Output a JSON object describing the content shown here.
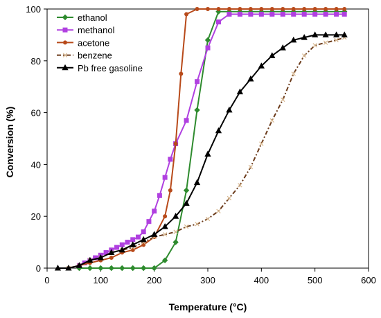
{
  "chart_data": {
    "type": "line",
    "title": "",
    "xlabel": "Temperature (°C)",
    "ylabel": "Conversion (%)",
    "xlim": [
      0,
      600
    ],
    "ylim": [
      0,
      100
    ],
    "x_ticks": [
      0,
      100,
      200,
      300,
      400,
      500,
      600
    ],
    "y_ticks": [
      0,
      20,
      40,
      60,
      80,
      100
    ],
    "grid": false,
    "legend_position": "top-left",
    "series": [
      {
        "name": "ethanol",
        "color": "#2e8b2e",
        "marker": "diamond",
        "dash": "",
        "points": [
          [
            60,
            0
          ],
          [
            80,
            0
          ],
          [
            100,
            0
          ],
          [
            120,
            0
          ],
          [
            140,
            0
          ],
          [
            160,
            0
          ],
          [
            180,
            0
          ],
          [
            200,
            0
          ],
          [
            220,
            3
          ],
          [
            240,
            10
          ],
          [
            260,
            30
          ],
          [
            280,
            61
          ],
          [
            300,
            88
          ],
          [
            320,
            99
          ],
          [
            340,
            99
          ],
          [
            360,
            99
          ],
          [
            380,
            99
          ],
          [
            400,
            99
          ],
          [
            420,
            99
          ],
          [
            440,
            99
          ],
          [
            460,
            99
          ],
          [
            480,
            99
          ],
          [
            500,
            99
          ],
          [
            520,
            99
          ],
          [
            540,
            99
          ],
          [
            555,
            99
          ]
        ]
      },
      {
        "name": "methanol",
        "color": "#b040e0",
        "marker": "square",
        "dash": "",
        "points": [
          [
            60,
            1
          ],
          [
            70,
            2
          ],
          [
            80,
            3
          ],
          [
            90,
            4
          ],
          [
            100,
            5
          ],
          [
            110,
            6
          ],
          [
            120,
            7
          ],
          [
            130,
            8
          ],
          [
            140,
            9
          ],
          [
            150,
            10
          ],
          [
            160,
            11
          ],
          [
            170,
            12
          ],
          [
            180,
            14
          ],
          [
            190,
            18
          ],
          [
            200,
            22
          ],
          [
            210,
            28
          ],
          [
            220,
            35
          ],
          [
            230,
            42
          ],
          [
            240,
            48
          ],
          [
            260,
            57
          ],
          [
            280,
            72
          ],
          [
            300,
            85
          ],
          [
            320,
            95
          ],
          [
            340,
            98
          ],
          [
            360,
            98
          ],
          [
            380,
            98
          ],
          [
            400,
            98
          ],
          [
            420,
            98
          ],
          [
            440,
            98
          ],
          [
            460,
            98
          ],
          [
            480,
            98
          ],
          [
            500,
            98
          ],
          [
            520,
            98
          ],
          [
            540,
            98
          ],
          [
            555,
            98
          ]
        ]
      },
      {
        "name": "acetone",
        "color": "#b84a1a",
        "marker": "circle",
        "dash": "",
        "points": [
          [
            40,
            0
          ],
          [
            60,
            1
          ],
          [
            80,
            2
          ],
          [
            100,
            3
          ],
          [
            120,
            4
          ],
          [
            140,
            6
          ],
          [
            160,
            7
          ],
          [
            180,
            9
          ],
          [
            200,
            12
          ],
          [
            220,
            20
          ],
          [
            230,
            30
          ],
          [
            240,
            48
          ],
          [
            250,
            75
          ],
          [
            260,
            98
          ],
          [
            280,
            100
          ],
          [
            300,
            100
          ],
          [
            320,
            100
          ],
          [
            340,
            100
          ],
          [
            360,
            100
          ],
          [
            380,
            100
          ],
          [
            400,
            100
          ],
          [
            420,
            100
          ],
          [
            440,
            100
          ],
          [
            460,
            100
          ],
          [
            480,
            100
          ],
          [
            500,
            100
          ],
          [
            520,
            100
          ],
          [
            540,
            100
          ],
          [
            555,
            100
          ]
        ]
      },
      {
        "name": "benzene",
        "color": "#6b3a1a",
        "marker": "x",
        "dash": "6,3,2,3",
        "points": [
          [
            40,
            0
          ],
          [
            60,
            1
          ],
          [
            80,
            3
          ],
          [
            100,
            4
          ],
          [
            120,
            6
          ],
          [
            140,
            7
          ],
          [
            160,
            8
          ],
          [
            180,
            10
          ],
          [
            200,
            12
          ],
          [
            220,
            13
          ],
          [
            240,
            14
          ],
          [
            260,
            16
          ],
          [
            280,
            17
          ],
          [
            300,
            19
          ],
          [
            320,
            22
          ],
          [
            340,
            27
          ],
          [
            360,
            32
          ],
          [
            380,
            39
          ],
          [
            400,
            48
          ],
          [
            420,
            57
          ],
          [
            440,
            65
          ],
          [
            460,
            75
          ],
          [
            480,
            82
          ],
          [
            500,
            86
          ],
          [
            520,
            87
          ],
          [
            540,
            88
          ],
          [
            555,
            89
          ]
        ]
      },
      {
        "name": "Pb free gasoline",
        "color": "#000000",
        "marker": "triangle",
        "dash": "",
        "points": [
          [
            20,
            0
          ],
          [
            40,
            0
          ],
          [
            60,
            1
          ],
          [
            80,
            3
          ],
          [
            100,
            4
          ],
          [
            120,
            6
          ],
          [
            140,
            7
          ],
          [
            160,
            9
          ],
          [
            180,
            11
          ],
          [
            200,
            13
          ],
          [
            220,
            16
          ],
          [
            240,
            20
          ],
          [
            260,
            25
          ],
          [
            280,
            33
          ],
          [
            300,
            44
          ],
          [
            320,
            53
          ],
          [
            340,
            61
          ],
          [
            360,
            68
          ],
          [
            380,
            73
          ],
          [
            400,
            78
          ],
          [
            420,
            82
          ],
          [
            440,
            85
          ],
          [
            460,
            88
          ],
          [
            480,
            89
          ],
          [
            500,
            90
          ],
          [
            520,
            90
          ],
          [
            540,
            90
          ],
          [
            555,
            90
          ]
        ]
      }
    ]
  }
}
